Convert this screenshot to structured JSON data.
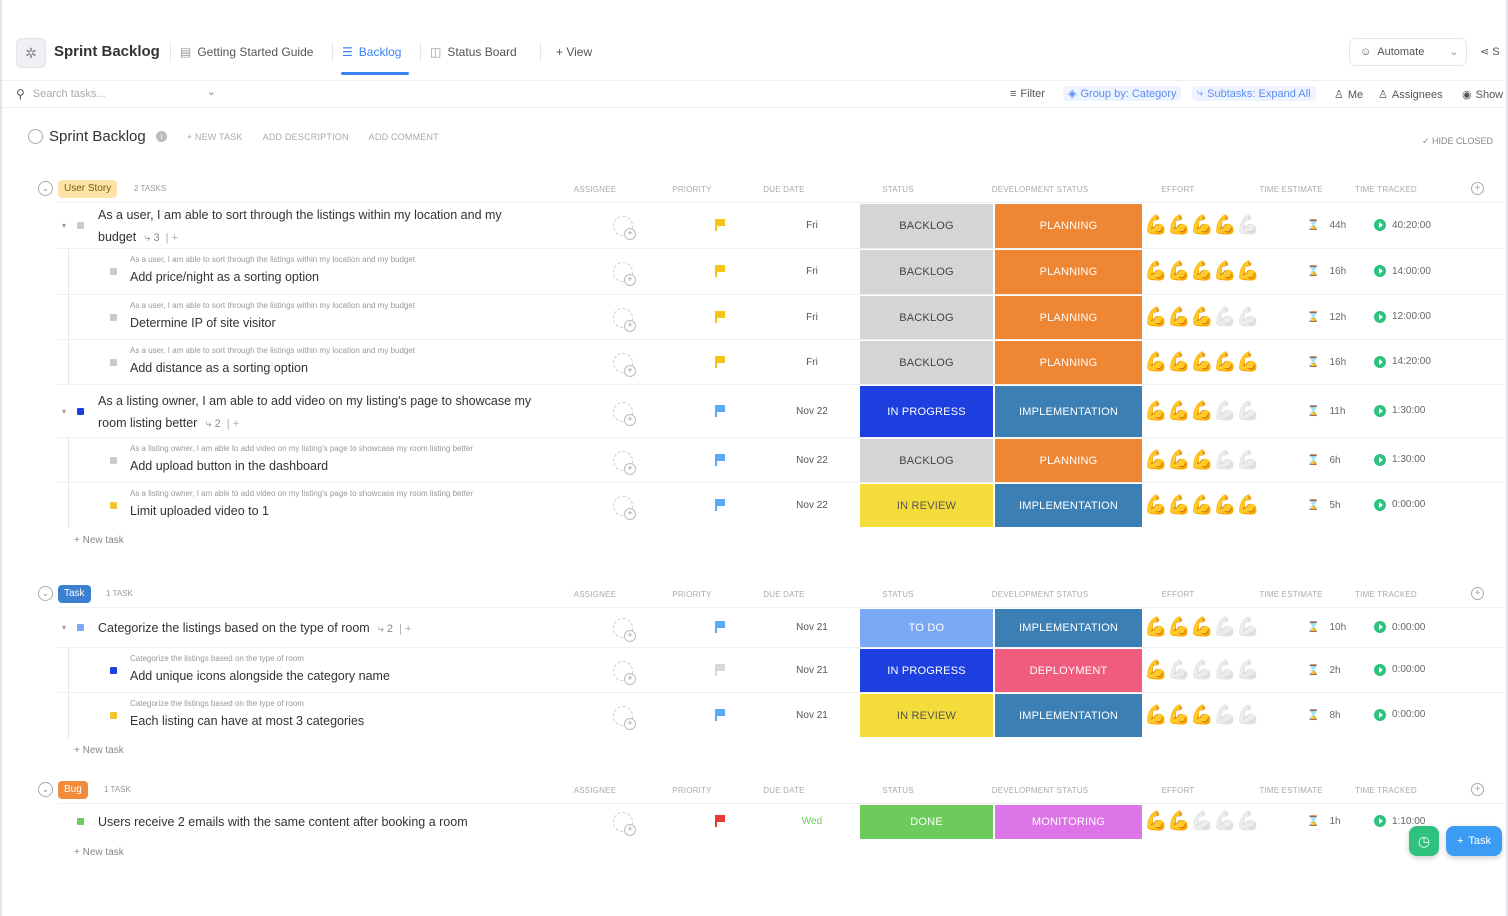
{
  "header": {
    "title": "Sprint Backlog",
    "tabs": [
      {
        "label": "Getting Started Guide",
        "icon": "doc-icon"
      },
      {
        "label": "Backlog",
        "icon": "list-icon",
        "active": true
      },
      {
        "label": "Status Board",
        "icon": "board-icon"
      },
      {
        "label": "+ View",
        "icon": "plus-icon"
      }
    ],
    "automate": "Automate",
    "share": "S"
  },
  "filterbar": {
    "search_placeholder": "Search tasks...",
    "filter": "Filter",
    "group_by": "Group by: Category",
    "subtasks": "Subtasks: Expand All",
    "me": "Me",
    "assignees": "Assignees",
    "show": "Show"
  },
  "list": {
    "title": "Sprint Backlog",
    "actions": [
      "+ NEW TASK",
      "ADD DESCRIPTION",
      "ADD COMMENT"
    ],
    "hide_closed": "HIDE CLOSED"
  },
  "columns": [
    "ASSIGNEE",
    "PRIORITY",
    "DUE DATE",
    "STATUS",
    "DEVELOPMENT STATUS",
    "EFFORT",
    "TIME ESTIMATE",
    "TIME TRACKED"
  ],
  "new_task_label": "+ New task",
  "fab": {
    "task": "Task"
  },
  "colors": {
    "accent": "#3b82f6",
    "status_backlog": "#d5d5d8",
    "status_in_progress": "#1e3fe0",
    "status_in_review": "#f4dc3a",
    "status_todo": "#7aa8f2",
    "status_done": "#6ccb5a",
    "dev_planning": "#ee8634",
    "dev_implementation": "#3b7fb5",
    "dev_deployment": "#ef5c7e",
    "dev_monitoring": "#dd74e8"
  },
  "groups": [
    {
      "badge": "User Story",
      "badge_bg": "#fde3a7",
      "badge_fg": "#7a5a10",
      "count": "2 TASKS",
      "rows": [
        {
          "name": "As a user, I am able to sort through the listings within my location and my",
          "name2": "budget",
          "subtasks": "3",
          "level": 0,
          "dot": "#c9c9cf",
          "priority": "#f5c518",
          "due": "Fri",
          "status": "BACKLOG",
          "status_bg": "#d5d5d8",
          "status_fg": "#444",
          "dev": "PLANNING",
          "dev_bg": "#ee8634",
          "effort": 4,
          "estimate": "44h",
          "tracked": "40:20:00"
        },
        {
          "parent": "As a user, I am able to sort through the listings within my location and my budget",
          "name": "Add price/night as a sorting option",
          "level": 1,
          "dot": "#c9c9cf",
          "priority": "#f5c518",
          "due": "Fri",
          "status": "BACKLOG",
          "status_bg": "#d5d5d8",
          "status_fg": "#444",
          "dev": "PLANNING",
          "dev_bg": "#ee8634",
          "effort": 5,
          "estimate": "16h",
          "tracked": "14:00:00"
        },
        {
          "parent": "As a user, I am able to sort through the listings within my location and my budget",
          "name": "Determine IP of site visitor",
          "level": 1,
          "dot": "#c9c9cf",
          "priority": "#f5c518",
          "due": "Fri",
          "status": "BACKLOG",
          "status_bg": "#d5d5d8",
          "status_fg": "#444",
          "dev": "PLANNING",
          "dev_bg": "#ee8634",
          "effort": 3,
          "estimate": "12h",
          "tracked": "12:00:00"
        },
        {
          "parent": "As a user, I am able to sort through the listings within my location and my budget",
          "name": "Add distance as a sorting option",
          "level": 1,
          "dot": "#c9c9cf",
          "priority": "#f5c518",
          "due": "Fri",
          "status": "BACKLOG",
          "status_bg": "#d5d5d8",
          "status_fg": "#444",
          "dev": "PLANNING",
          "dev_bg": "#ee8634",
          "effort": 5,
          "estimate": "16h",
          "tracked": "14:20:00"
        },
        {
          "name": "As a listing owner, I am able to add video on my listing's page to showcase my",
          "name2": "room listing better",
          "subtasks": "2",
          "level": 0,
          "dot": "#1e3fe0",
          "priority": "#5ba8f5",
          "due": "Nov 22",
          "status": "IN PROGRESS",
          "status_bg": "#1e3fe0",
          "status_fg": "#fff",
          "dev": "IMPLEMENTATION",
          "dev_bg": "#3b7fb5",
          "effort": 3,
          "estimate": "11h",
          "tracked": "1:30:00"
        },
        {
          "parent": "As a listing owner, I am able to add video on my listing's page to showcase my room listing better",
          "name": "Add upload button in the dashboard",
          "level": 1,
          "dot": "#c9c9cf",
          "priority": "#5ba8f5",
          "due": "Nov 22",
          "status": "BACKLOG",
          "status_bg": "#d5d5d8",
          "status_fg": "#444",
          "dev": "PLANNING",
          "dev_bg": "#ee8634",
          "effort": 3,
          "estimate": "6h",
          "tracked": "1:30:00"
        },
        {
          "parent": "As a listing owner, I am able to add video on my listing's page to showcase my room listing better",
          "name": "Limit uploaded video to 1",
          "level": 1,
          "dot": "#f4c430",
          "priority": "#5ba8f5",
          "due": "Nov 22",
          "status": "IN REVIEW",
          "status_bg": "#f4dc3a",
          "status_fg": "#555",
          "dev": "IMPLEMENTATION",
          "dev_bg": "#3b7fb5",
          "effort": 5,
          "estimate": "5h",
          "tracked": "0:00:00"
        }
      ]
    },
    {
      "badge": "Task",
      "badge_bg": "#3b7fd0",
      "badge_fg": "#ffffff",
      "count": "1 TASK",
      "rows": [
        {
          "name": "Categorize the listings based on the type of room",
          "subtasks": "2",
          "level": 0,
          "dot": "#7aa8f2",
          "priority": "#5ba8f5",
          "due": "Nov 21",
          "status": "TO DO",
          "status_bg": "#7aa8f2",
          "status_fg": "#fff",
          "dev": "IMPLEMENTATION",
          "dev_bg": "#3b7fb5",
          "effort": 3,
          "estimate": "10h",
          "tracked": "0:00:00"
        },
        {
          "parent": "Categorize the listings based on the type of room",
          "name": "Add unique icons alongside the category name",
          "level": 1,
          "dot": "#1e3fe0",
          "priority": "#d8d8dc",
          "due": "Nov 21",
          "status": "IN PROGRESS",
          "status_bg": "#1e3fe0",
          "status_fg": "#fff",
          "dev": "DEPLOYMENT",
          "dev_bg": "#ef5c7e",
          "effort": 1,
          "estimate": "2h",
          "tracked": "0:00:00"
        },
        {
          "parent": "Categorize the listings based on the type of room",
          "name": "Each listing can have at most 3 categories",
          "level": 1,
          "dot": "#f4c430",
          "priority": "#5ba8f5",
          "due": "Nov 21",
          "status": "IN REVIEW",
          "status_bg": "#f4dc3a",
          "status_fg": "#555",
          "dev": "IMPLEMENTATION",
          "dev_bg": "#3b7fb5",
          "effort": 3,
          "estimate": "8h",
          "tracked": "0:00:00"
        }
      ]
    },
    {
      "badge": "Bug",
      "badge_bg": "#f28a3c",
      "badge_fg": "#ffffff",
      "count": "1 TASK",
      "rows": [
        {
          "name": "Users receive 2 emails with the same content after booking a room",
          "level": 0,
          "dot": "#6ccb5a",
          "priority": "#e53935",
          "due": "Wed",
          "due_color": "#6ccb5a",
          "status": "DONE",
          "status_bg": "#6ccb5a",
          "status_fg": "#fff",
          "dev": "MONITORING",
          "dev_bg": "#dd74e8",
          "effort": 2,
          "estimate": "1h",
          "tracked": "1:10:00"
        }
      ]
    }
  ]
}
